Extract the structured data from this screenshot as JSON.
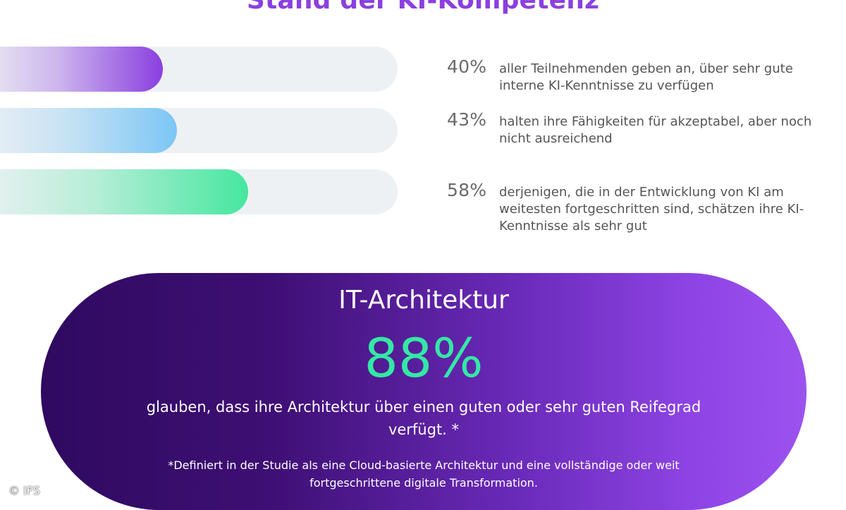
{
  "heading": "Stand der KI-Kompetenz",
  "chart_data": {
    "type": "bar",
    "orientation": "horizontal",
    "categories": [
      "aller Teilnehmenden geben an, über sehr gute interne KI-Kenntnisse zu verfügen",
      "halten ihre Fähigkeiten für akzeptabel, aber noch nicht ausreichend",
      "derjenigen, die in der Entwicklung von KI am weitesten fortgeschritten sind, schätzen ihre KI-Kenntnisse als sehr gut"
    ],
    "values": [
      40,
      43,
      58
    ],
    "value_labels": [
      "40%",
      "43%",
      "58%"
    ],
    "xlim": [
      0,
      100
    ],
    "colors": [
      "#8b3fe0",
      "#7cc6f5",
      "#45e79f"
    ]
  },
  "stats": [
    {
      "pct": "40%",
      "text": "aller Teilnehmenden geben an, über sehr gute interne KI-Kenntnisse zu verfügen"
    },
    {
      "pct": "43%",
      "text": "halten ihre Fähigkeiten für akzeptabel, aber noch nicht ausreichend"
    },
    {
      "pct": "58%",
      "text": "derjenigen, die in der Entwicklung von KI am weitesten fortgeschritten sind, schätzen ihre KI-Kenntnisse als sehr gut"
    }
  ],
  "architecture": {
    "title": "IT-Architektur",
    "value": "88%",
    "text": "glauben, dass ihre Architektur über einen guten oder sehr guten Reifegrad verfügt. *",
    "note": "*Definiert in der Studie als eine Cloud-basierte Architektur und eine vollständige oder weit fortgeschrittene digitale Transformation."
  },
  "copyright": "© IFS"
}
